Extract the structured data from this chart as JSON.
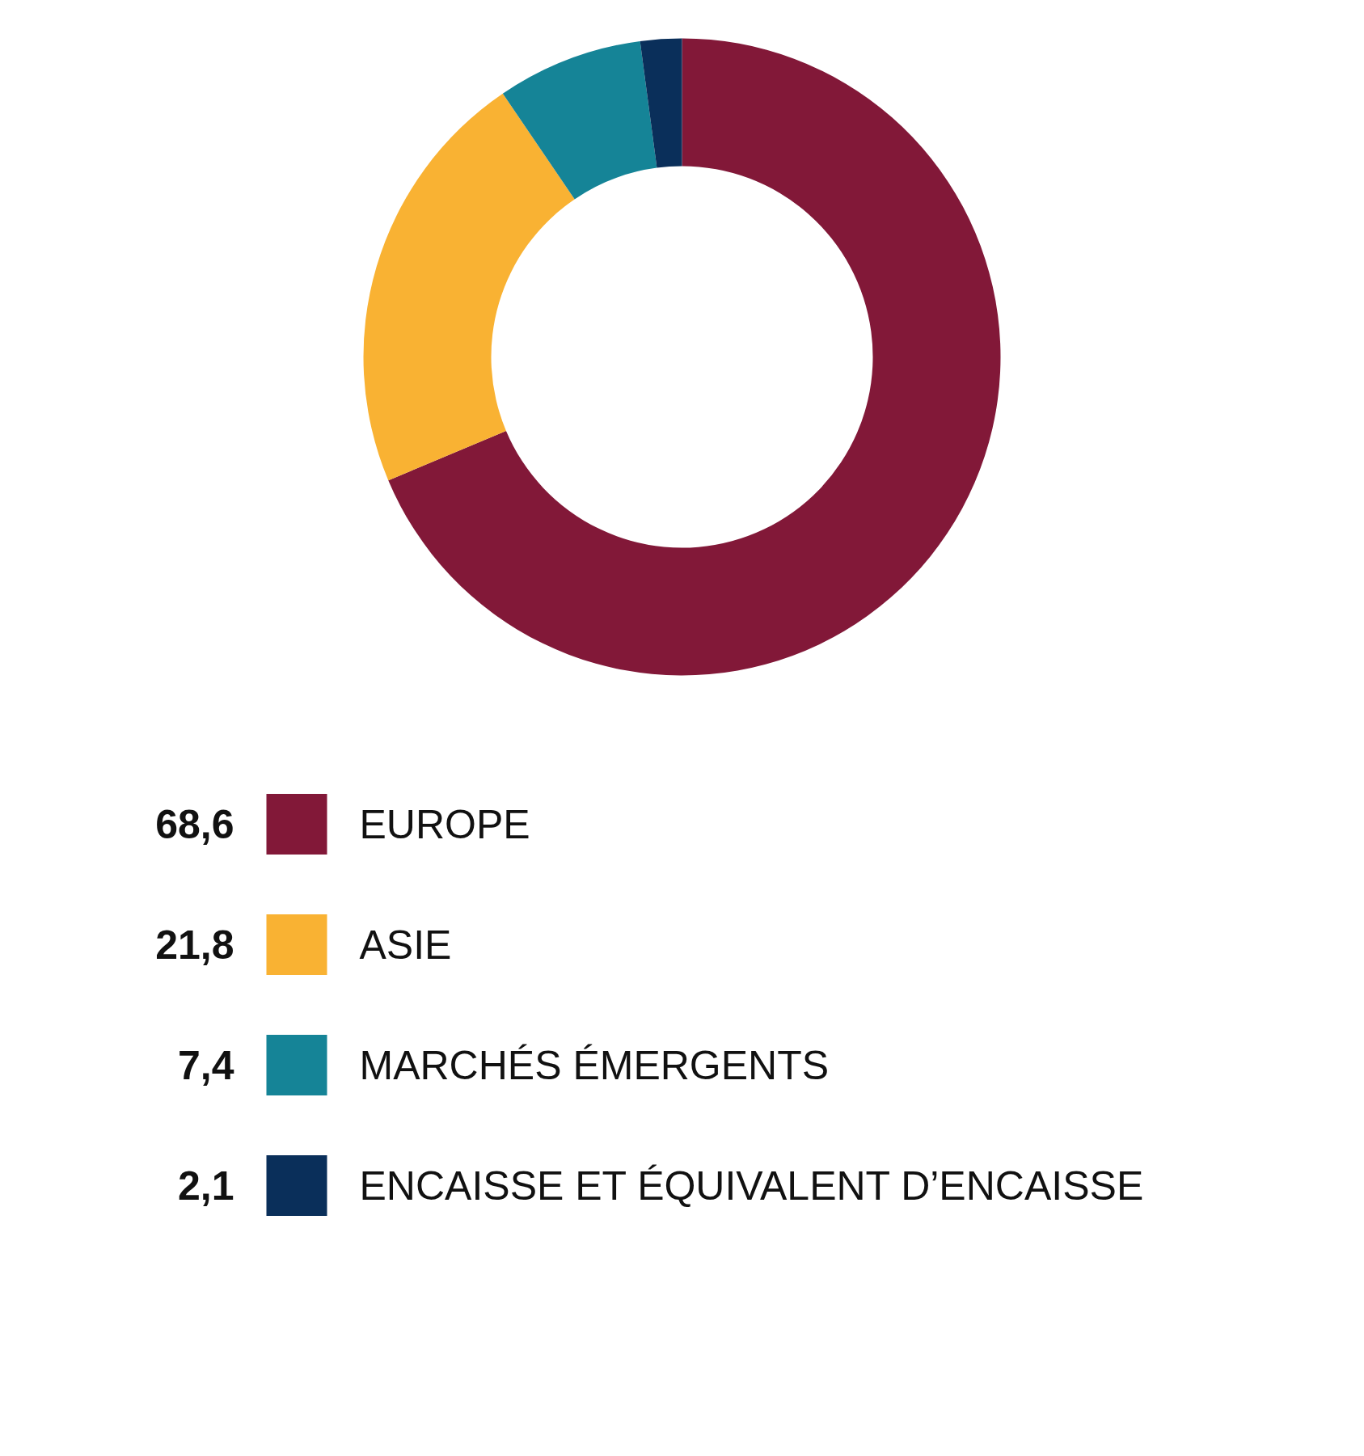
{
  "chart_data": {
    "type": "donut",
    "categories": [
      "EUROPE",
      "ASIE",
      "MARCHÉS ÉMERGENTS",
      "ENCAISSE ET ÉQUIVALENT D’ENCAISSE"
    ],
    "values": [
      68.6,
      21.8,
      7.4,
      2.1
    ],
    "value_labels": [
      "68,6",
      "21,8",
      "7,4",
      "2,1"
    ],
    "colors": [
      "#821838",
      "#f9b233",
      "#158497",
      "#0a2f5a"
    ],
    "legend": "bottom"
  }
}
